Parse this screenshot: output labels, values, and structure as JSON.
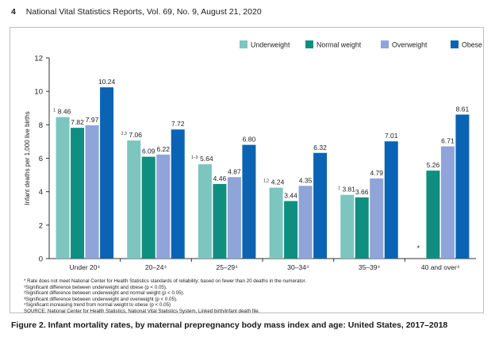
{
  "header": {
    "page_number": "4",
    "title": "National Vital Statistics Reports, Vol. 69, No. 9, August 21, 2020"
  },
  "chart_data": {
    "type": "bar",
    "title": "",
    "ylabel": "Infant deaths per 1,000 live births",
    "xlabel": "",
    "ylim": [
      0,
      12
    ],
    "yticks": [
      0,
      2,
      4,
      6,
      8,
      10,
      12
    ],
    "grid": false,
    "legend": "top-right",
    "categories": [
      "Under 20⁴",
      "20–24⁴",
      "25–29⁴",
      "30–34⁴",
      "35–39⁴",
      "40 and over⁴"
    ],
    "series": [
      {
        "name": "Underweight",
        "color": "#7cc6bf",
        "values": [
          8.46,
          7.06,
          5.64,
          4.24,
          3.81,
          null
        ],
        "labels": [
          "8.46",
          "7.06",
          "5.64",
          "4.24",
          "3.81",
          "*"
        ],
        "superscripts": [
          "1",
          "2,3",
          "1–3",
          "1,2",
          "1",
          ""
        ]
      },
      {
        "name": "Normal weight",
        "color": "#0f8f80",
        "values": [
          7.82,
          6.09,
          4.46,
          3.44,
          3.66,
          5.26
        ],
        "labels": [
          "7.82",
          "6.09",
          "4.46",
          "3.44",
          "3.66",
          "5.26"
        ]
      },
      {
        "name": "Overweight",
        "color": "#8fa4d8",
        "values": [
          7.97,
          6.22,
          4.87,
          4.35,
          4.79,
          6.71
        ],
        "labels": [
          "7.97",
          "6.22",
          "4.87",
          "4.35",
          "4.79",
          "6.71"
        ]
      },
      {
        "name": "Obese",
        "color": "#0b63b4",
        "values": [
          10.24,
          7.72,
          6.8,
          6.32,
          7.01,
          8.61
        ],
        "labels": [
          "10.24",
          "7.72",
          "6.80",
          "6.32",
          "7.01",
          "8.61"
        ]
      }
    ]
  },
  "notes": [
    "* Rate does not meet National Center for Health Statistics standards of reliability; based on fewer than 20 deaths in the numerator.",
    "¹Significant difference between underweight and obese (p < 0.05).",
    "²Significant difference between underweight and normal weight (p < 0.05).",
    "³Significant difference between underweight and overweight (p < 0.05).",
    "⁴Significant increasing trend from normal weight to obese (p < 0.05)",
    "SOURCE: National Center for Health Statistics, National Vital Statistics System, Linked birth/infant death file."
  ],
  "caption": "Figure 2. Infant mortality rates, by maternal prepregnancy body mass index and age: United States, 2017–2018"
}
